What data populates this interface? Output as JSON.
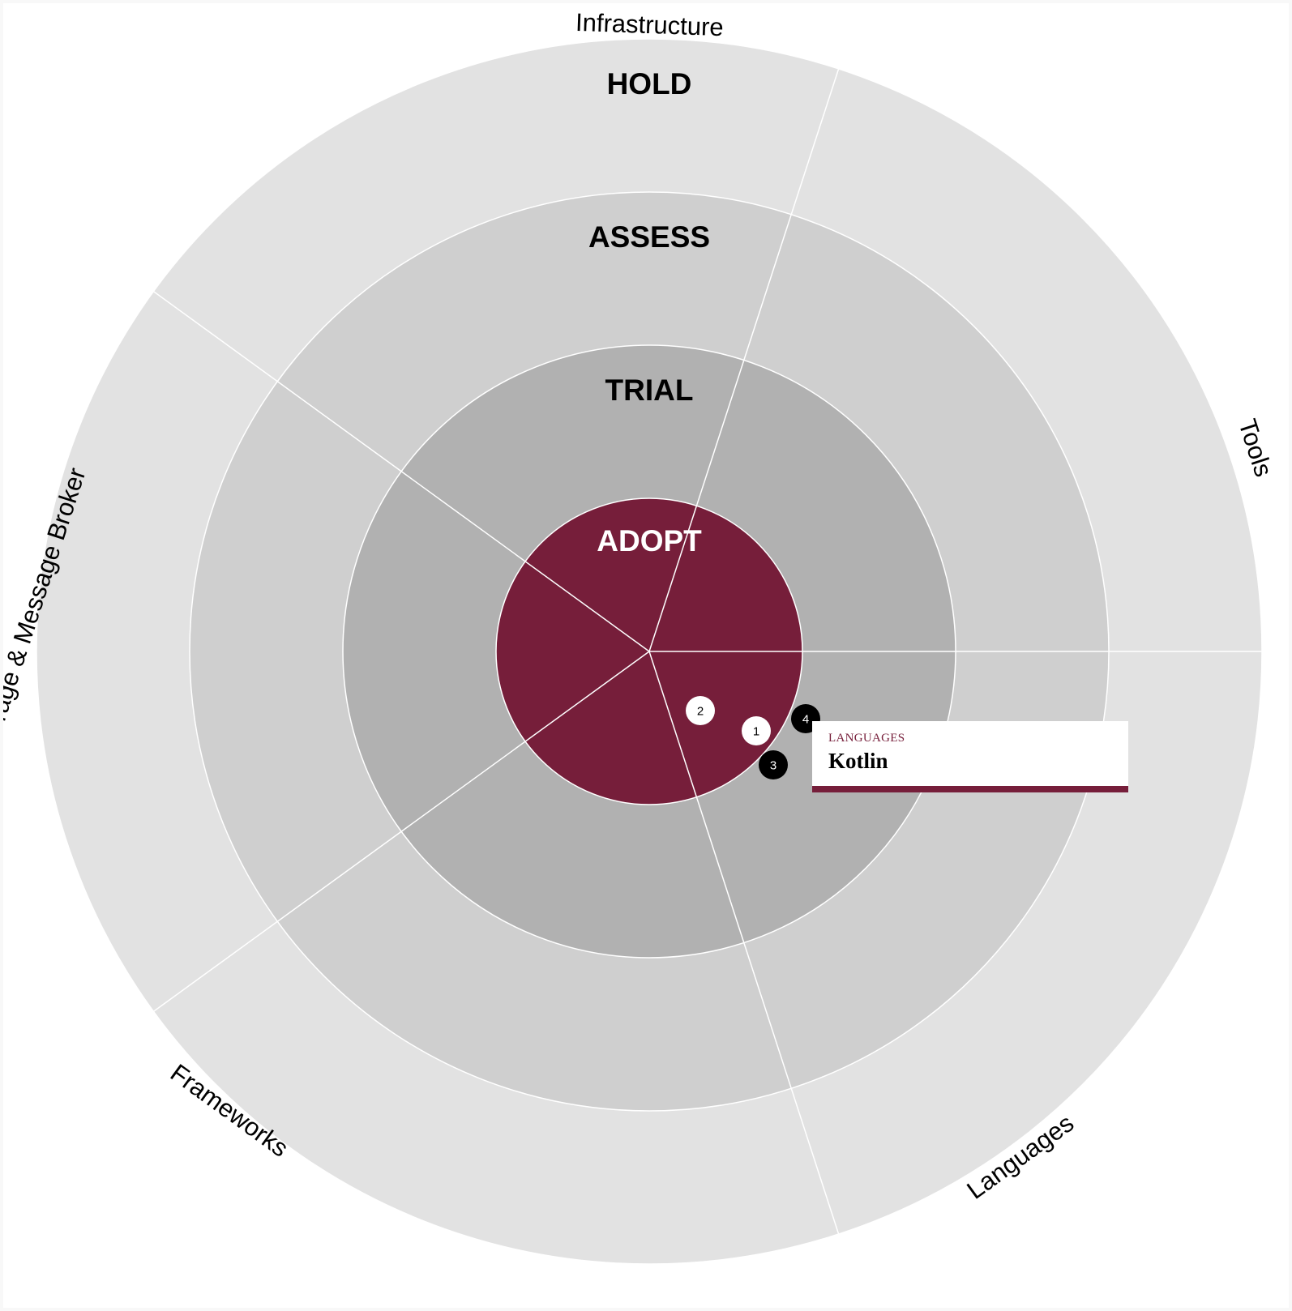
{
  "colors": {
    "adopt": "#761e3a",
    "trial": "#b1b1b1",
    "assess": "#cfcfcf",
    "hold": "#e2e2e2",
    "divider": "#ffffff",
    "blip_filled": "#000000",
    "blip_hollow": "#ffffff"
  },
  "rings": [
    {
      "key": "adopt",
      "label": "ADOPT",
      "label_color": "#ffffff"
    },
    {
      "key": "trial",
      "label": "TRIAL",
      "label_color": "#000000"
    },
    {
      "key": "assess",
      "label": "ASSESS",
      "label_color": "#000000"
    },
    {
      "key": "hold",
      "label": "HOLD",
      "label_color": "#000000"
    }
  ],
  "quadrants": [
    {
      "name": "Infrastructure"
    },
    {
      "name": "Tools"
    },
    {
      "name": "Languages"
    },
    {
      "name": "Frameworks"
    },
    {
      "name": "Data Storage & Message Broker"
    }
  ],
  "blips": [
    {
      "number": "1",
      "quadrant": "Languages",
      "ring": "ADOPT",
      "style": "hollow"
    },
    {
      "number": "2",
      "quadrant": "Languages",
      "ring": "ADOPT",
      "style": "hollow"
    },
    {
      "number": "3",
      "quadrant": "Languages",
      "ring": "ADOPT",
      "style": "filled"
    },
    {
      "number": "4",
      "quadrant": "Languages",
      "ring": "ADOPT",
      "style": "filled"
    }
  ],
  "tooltip": {
    "quadrant": "LANGUAGES",
    "name": "Kotlin"
  }
}
